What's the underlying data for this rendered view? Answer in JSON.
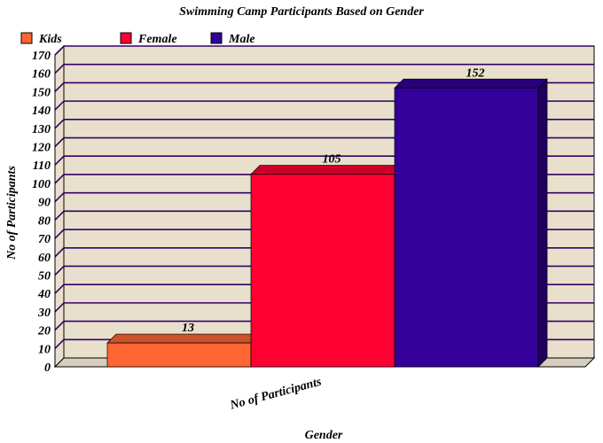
{
  "chart_data": {
    "type": "bar",
    "title": "Swimming Camp Participants Based on Gender",
    "xlabel": "Gender",
    "ylabel": "No of Participants",
    "categories": [
      "No of Participants"
    ],
    "series": [
      {
        "name": "Kids",
        "values": [
          13
        ],
        "color": "#ff6633"
      },
      {
        "name": "Female",
        "values": [
          105
        ],
        "color": "#ff0033"
      },
      {
        "name": "Male",
        "values": [
          152
        ],
        "color": "#330099"
      }
    ],
    "ylim": [
      0,
      170
    ],
    "ytick_step": 10,
    "grid": true,
    "legend_position": "top-left",
    "plot_background": "#e8e0cc",
    "gridline_color": "#330066",
    "three_d": true
  }
}
